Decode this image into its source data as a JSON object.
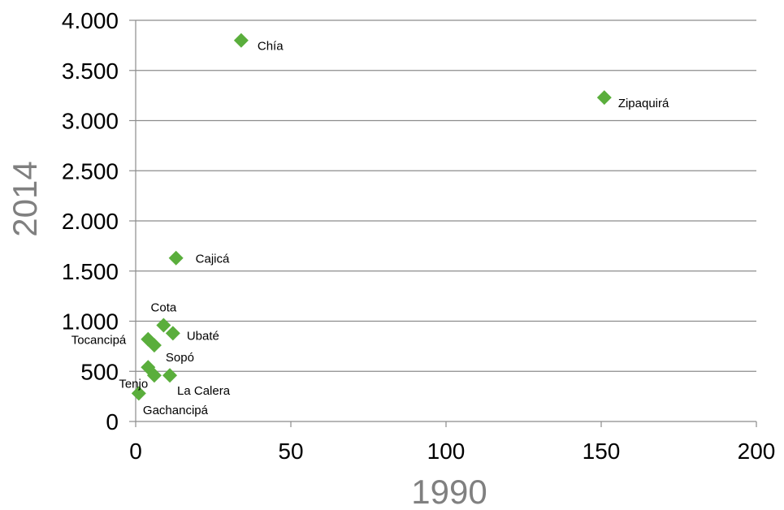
{
  "chart_data": {
    "type": "scatter",
    "title": "",
    "xlabel": "1990",
    "ylabel": "2014",
    "xlim": [
      0,
      200
    ],
    "ylim": [
      0,
      4000
    ],
    "x_ticks": [
      0,
      50,
      100,
      150,
      200
    ],
    "x_tick_labels": [
      "0",
      "50",
      "100",
      "150",
      "200"
    ],
    "y_ticks": [
      0,
      500,
      1000,
      1500,
      2000,
      2500,
      3000,
      3500,
      4000
    ],
    "y_tick_labels": [
      "0",
      "500",
      "1.000",
      "1.500",
      "2.000",
      "2.500",
      "3.000",
      "3.500",
      "4.000"
    ],
    "grid": "horizontal",
    "marker": "diamond",
    "point_color": "#5aae3c",
    "points": [
      {
        "label": "Chía",
        "x": 34,
        "y": 3800
      },
      {
        "label": "Zipaquirá",
        "x": 151,
        "y": 3230
      },
      {
        "label": "Cajicá",
        "x": 13,
        "y": 1630
      },
      {
        "label": "Cota",
        "x": 9,
        "y": 960
      },
      {
        "label": "Ubaté",
        "x": 12,
        "y": 880
      },
      {
        "label": "Tocancipá",
        "x": 4,
        "y": 820
      },
      {
        "label": "Sopó",
        "x": 6,
        "y": 760
      },
      {
        "label": "Tenjo",
        "x": 4,
        "y": 540
      },
      {
        "label": "La Calera",
        "x": 11,
        "y": 460
      },
      {
        "label": "Gachancipá",
        "x": 6,
        "y": 460
      },
      {
        "label": "",
        "x": 1,
        "y": 280
      }
    ]
  }
}
